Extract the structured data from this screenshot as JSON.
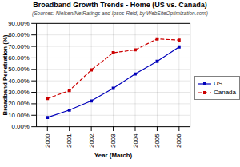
{
  "chart_data": {
    "type": "line",
    "title": "Broadband Growth Trends - Home (US vs. Canada)",
    "subtitle": "(Sources: Nielsen/NetRatings and Ipsos-Reid, by WebSiteOptimization.com)",
    "xlabel": "Year (March)",
    "ylabel": "Broadband Penetration (%)",
    "x": [
      2000,
      2001,
      2002,
      2003,
      2004,
      2005,
      2006
    ],
    "series": [
      {
        "name": "US",
        "color": "#0000bb",
        "marker": "square",
        "line_style": "solid",
        "values": [
          8.0,
          14.5,
          22.5,
          33.5,
          46.0,
          57.0,
          69.5
        ]
      },
      {
        "name": "Canada",
        "color": "#cc0000",
        "marker": "square",
        "line_style": "dashed",
        "values": [
          24.5,
          31.5,
          49.5,
          64.5,
          67.0,
          76.5,
          75.5
        ]
      }
    ],
    "xlim": [
      1999.5,
      2006.5
    ],
    "xticks": [
      2000,
      2001,
      2002,
      2003,
      2004,
      2005,
      2006
    ],
    "ylim": [
      0,
      90
    ],
    "yticks": [
      {
        "value": 0,
        "label": "0.00%"
      },
      {
        "value": 10,
        "label": "10.00%"
      },
      {
        "value": 20,
        "label": "20.00%"
      },
      {
        "value": 30,
        "label": "30.00%"
      },
      {
        "value": 40,
        "label": "40.00%"
      },
      {
        "value": 50,
        "label": "50.00%"
      },
      {
        "value": 60,
        "label": "60.00%"
      },
      {
        "value": 70,
        "label": "70.00%"
      },
      {
        "value": 80,
        "label": "80.00%"
      },
      {
        "value": 90,
        "label": "90.00%"
      }
    ],
    "grid": true,
    "legend": "right"
  }
}
